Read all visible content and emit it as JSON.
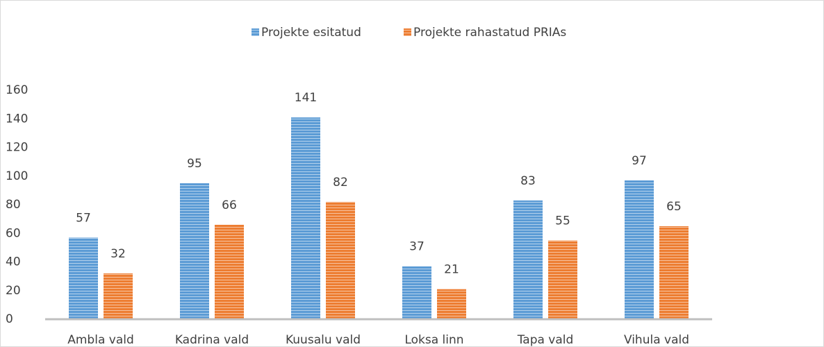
{
  "chart_data": {
    "type": "bar",
    "categories": [
      "Ambla vald",
      "Kadrina vald",
      "Kuusalu vald",
      "Loksa linn",
      "Tapa vald",
      "Vihula vald"
    ],
    "series": [
      {
        "name": "Projekte esitatud",
        "color": "#5b9bd5",
        "values": [
          57,
          95,
          141,
          37,
          83,
          97
        ]
      },
      {
        "name": "Projekte rahastatud PRIAs",
        "color": "#ed7d31",
        "values": [
          32,
          66,
          82,
          21,
          55,
          65
        ]
      }
    ],
    "ylim": [
      0,
      160
    ],
    "yticks": [
      0,
      20,
      40,
      60,
      80,
      100,
      120,
      140,
      160
    ],
    "grid": false,
    "legend": "top",
    "data_labels": true
  }
}
